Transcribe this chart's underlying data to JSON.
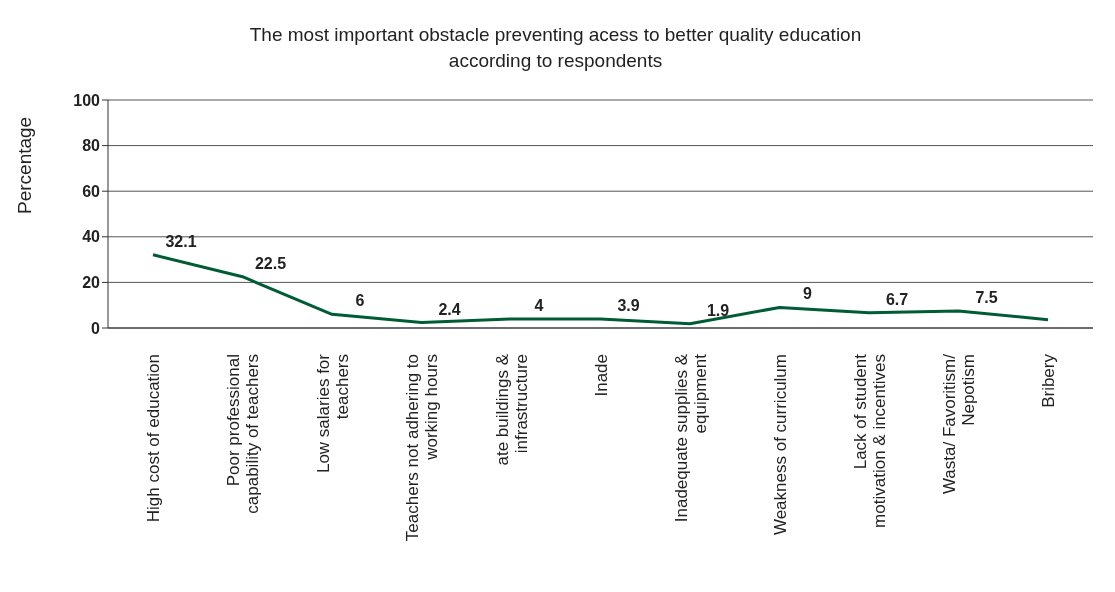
{
  "chart_data": {
    "type": "line",
    "title": "The most important obstacle preventing acess to better quality education according to respondents",
    "ylabel": "Percentage",
    "categories": [
      "High cost of education",
      "Poor professional capability of teachers",
      "Low salaries for teachers",
      "Teachers not adhering to working hours",
      "ate buildings & infrastructure",
      "Inade",
      "Inadequate supplies & equipment",
      "Weakness of curriculum",
      "Lack of student motivation & incentives",
      "Wasta/ Favoritism/ Nepotism",
      "Bribery"
    ],
    "values": [
      32.1,
      22.5,
      6,
      2.4,
      4,
      3.9,
      1.9,
      9,
      6.7,
      7.5,
      3.6
    ],
    "value_labels": [
      "32.1",
      "22.5",
      "6",
      "2.4",
      "4",
      "3.9",
      "1.9",
      "9",
      "6.7",
      "7.5",
      null
    ],
    "color": "#005c35",
    "ylim": [
      0,
      100
    ],
    "yticks": [
      0,
      20,
      40,
      60,
      80,
      100
    ],
    "grid": "y"
  }
}
